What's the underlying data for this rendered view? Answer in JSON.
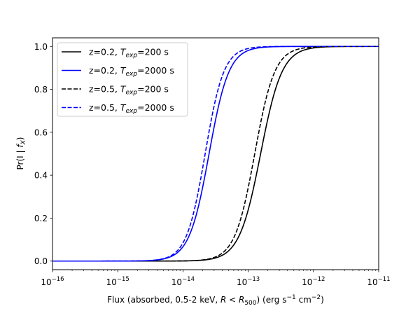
{
  "chart_data": {
    "type": "line",
    "title": "",
    "xlabel": {
      "prefix": "Flux (absorbed, 0.5-2 keV, ",
      "var": "R",
      "lt": " < ",
      "rvar": "R",
      "rsub": "500",
      "suffix": ") (erg s",
      "exp1": "−1",
      "mid": " cm",
      "exp2": "−2",
      "close": ")"
    },
    "ylabel": {
      "prefix": "Pr(I | ",
      "var": "f",
      "sub": "X",
      "suffix": ")"
    },
    "x_scale": "log",
    "xlim": [
      1e-16,
      1e-11
    ],
    "ylim": [
      -0.04,
      1.04
    ],
    "x_ticks": [
      {
        "exp": -16,
        "base": "10",
        "sup": "−16"
      },
      {
        "exp": -15,
        "base": "10",
        "sup": "−15"
      },
      {
        "exp": -14,
        "base": "10",
        "sup": "−14"
      },
      {
        "exp": -13,
        "base": "10",
        "sup": "−13"
      },
      {
        "exp": -12,
        "base": "10",
        "sup": "−12"
      },
      {
        "exp": -11,
        "base": "10",
        "sup": "−11"
      }
    ],
    "y_ticks": [
      {
        "value": 0.0,
        "label": "0.0"
      },
      {
        "value": 0.2,
        "label": "0.2"
      },
      {
        "value": 0.4,
        "label": "0.4"
      },
      {
        "value": 0.6,
        "label": "0.6"
      },
      {
        "value": 0.8,
        "label": "0.8"
      },
      {
        "value": 1.0,
        "label": "1.0"
      }
    ],
    "series": [
      {
        "name": "z=0.2, T_exp=200 s",
        "legend": {
          "pre": "z=0.2, ",
          "var": "T",
          "sub": "exp",
          "post": "=200 s"
        },
        "color": "#000000",
        "style": "solid",
        "model": {
          "log10_midpoint": -12.81,
          "width_dex": 0.164
        },
        "log10_x": [
          -16,
          -14.0,
          -13.6,
          -13.4,
          -13.2,
          -13.0,
          -12.9,
          -12.81,
          -12.7,
          -12.6,
          -12.4,
          -12.2,
          -12.0,
          -11.6,
          -11
        ],
        "y": [
          0.0,
          0.0,
          0.007,
          0.021,
          0.07,
          0.24,
          0.37,
          0.5,
          0.66,
          0.78,
          0.92,
          0.975,
          0.993,
          1.0,
          1.0
        ]
      },
      {
        "name": "z=0.2, T_exp=2000 s",
        "legend": {
          "pre": "z=0.2, ",
          "var": "T",
          "sub": "exp",
          "post": "=2000 s"
        },
        "color": "#0000ff",
        "style": "solid",
        "model": {
          "log10_midpoint": -13.6,
          "width_dex": 0.152
        },
        "log10_x": [
          -16,
          -14.8,
          -14.4,
          -14.2,
          -14.0,
          -13.8,
          -13.7,
          -13.6,
          -13.5,
          -13.4,
          -13.2,
          -13.0,
          -12.8,
          -12.4,
          -11
        ],
        "y": [
          0.0,
          0.0,
          0.005,
          0.019,
          0.065,
          0.21,
          0.34,
          0.5,
          0.66,
          0.79,
          0.935,
          0.982,
          0.995,
          1.0,
          1.0
        ]
      },
      {
        "name": "z=0.5, T_exp=200 s",
        "legend": {
          "pre": "z=0.5, ",
          "var": "T",
          "sub": "exp",
          "post": "=200 s"
        },
        "color": "#000000",
        "style": "dashed",
        "model": {
          "log10_midpoint": -12.9,
          "width_dex": 0.153
        },
        "log10_x": [
          -16,
          -14.0,
          -13.6,
          -13.4,
          -13.2,
          -13.0,
          -12.9,
          -12.8,
          -12.7,
          -12.6,
          -12.4,
          -12.2,
          -12.0,
          -11.6,
          -11
        ],
        "y": [
          0.0,
          0.0,
          0.01,
          0.036,
          0.13,
          0.34,
          0.5,
          0.66,
          0.79,
          0.88,
          0.96,
          0.99,
          0.998,
          1.0,
          1.0
        ]
      },
      {
        "name": "z=0.5, T_exp=2000 s",
        "legend": {
          "pre": "z=0.5, ",
          "var": "T",
          "sub": "exp",
          "post": "=2000 s"
        },
        "color": "#0000ff",
        "style": "dashed",
        "model": {
          "log10_midpoint": -13.66,
          "width_dex": 0.143
        },
        "log10_x": [
          -16,
          -14.8,
          -14.4,
          -14.2,
          -14.0,
          -13.8,
          -13.66,
          -13.5,
          -13.4,
          -13.2,
          -13.0,
          -12.8,
          -12.6,
          -12.4,
          -11
        ],
        "y": [
          0.0,
          0.0,
          0.006,
          0.023,
          0.09,
          0.28,
          0.5,
          0.74,
          0.86,
          0.96,
          0.99,
          0.998,
          1.0,
          1.0,
          1.0
        ]
      }
    ],
    "legend_position": "top-left",
    "grid": false
  }
}
